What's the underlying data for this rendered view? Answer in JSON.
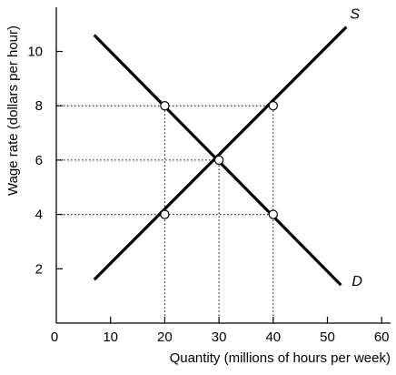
{
  "chart_data": {
    "type": "line",
    "title": "",
    "xlabel": "Quantity (millions of hours per week)",
    "ylabel": "Wage rate (dollars per hour)",
    "xlim": [
      0,
      60
    ],
    "ylim": [
      0,
      12
    ],
    "xticks": [
      0,
      10,
      20,
      30,
      40,
      50,
      60
    ],
    "xtick_labels": [
      "0",
      "10",
      "20",
      "30",
      "40",
      "50",
      "60"
    ],
    "yticks": [
      2,
      4,
      6,
      8,
      10
    ],
    "ytick_labels": [
      "2",
      "4",
      "6",
      "8",
      "10"
    ],
    "grid": false,
    "legend": "none",
    "series": [
      {
        "name": "S",
        "color": "#000000",
        "x": [
          7,
          53.5
        ],
        "y": [
          1.6,
          10.9
        ]
      },
      {
        "name": "D",
        "color": "#000000",
        "x": [
          7,
          52.5
        ],
        "y": [
          10.6,
          1.4
        ]
      }
    ],
    "points": [
      {
        "x": 20,
        "y": 8
      },
      {
        "x": 40,
        "y": 8
      },
      {
        "x": 30,
        "y": 6
      },
      {
        "x": 20,
        "y": 4
      },
      {
        "x": 40,
        "y": 4
      }
    ],
    "reference_lines": [
      {
        "from": [
          0,
          8
        ],
        "to": [
          40,
          8
        ]
      },
      {
        "from": [
          0,
          6
        ],
        "to": [
          30,
          6
        ]
      },
      {
        "from": [
          0,
          4
        ],
        "to": [
          40,
          4
        ]
      },
      {
        "from": [
          20,
          0
        ],
        "to": [
          20,
          8
        ]
      },
      {
        "from": [
          30,
          0
        ],
        "to": [
          30,
          6
        ]
      },
      {
        "from": [
          40,
          0
        ],
        "to": [
          40,
          8
        ]
      }
    ]
  }
}
